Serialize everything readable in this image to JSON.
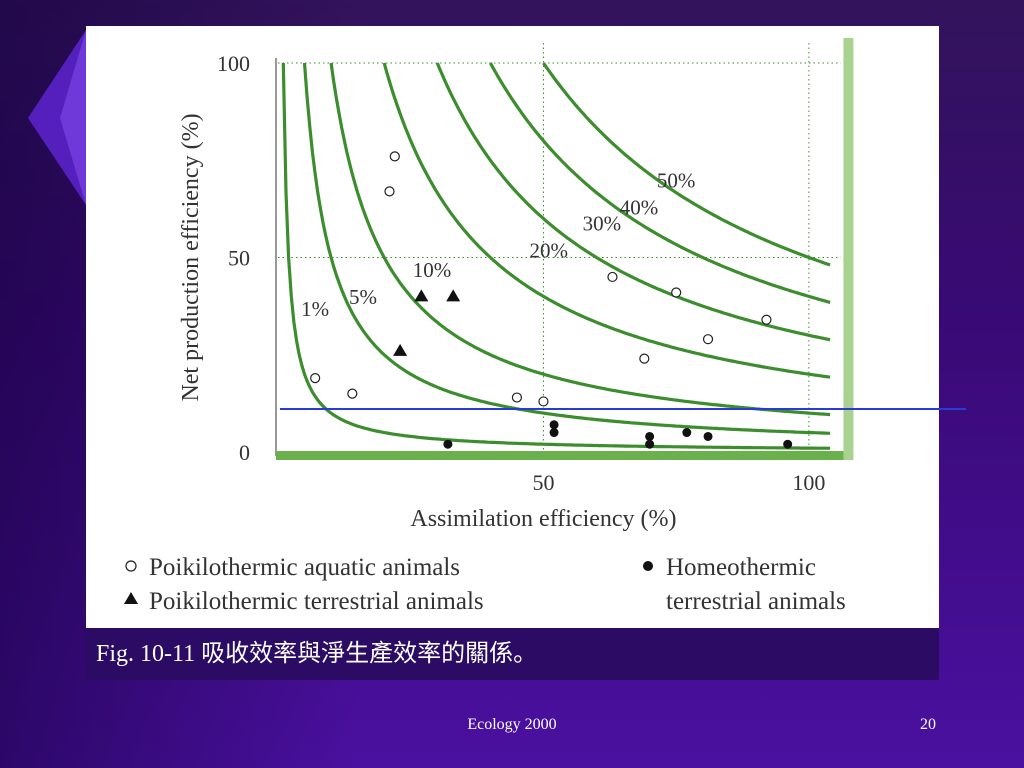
{
  "slide": {
    "caption": "Fig. 10-11 吸收效率與淨生產效率的關係。",
    "footer": "Ecology 2000",
    "page_number": "20"
  },
  "colors": {
    "curve": "#3c8d2e",
    "background_top": "#2a0a55",
    "background_bottom": "#4a10a0",
    "annotation_line": "#2a3ad6"
  },
  "chart_data": {
    "type": "scatter",
    "xlabel": "Assimilation efficiency (%)",
    "ylabel": "Net production efficiency (%)",
    "xlim": [
      0,
      110
    ],
    "ylim": [
      0,
      100
    ],
    "x_ticks": [
      50,
      100
    ],
    "y_ticks": [
      0,
      50,
      100
    ],
    "grid": "dotted at 50 and 100",
    "curves": [
      {
        "label": "1%",
        "k": 1
      },
      {
        "label": "5%",
        "k": 5
      },
      {
        "label": "10%",
        "k": 10
      },
      {
        "label": "20%",
        "k": 20
      },
      {
        "label": "30%",
        "k": 30
      },
      {
        "label": "40%",
        "k": 40
      },
      {
        "label": "50%",
        "k": 50
      }
    ],
    "series": [
      {
        "name": "Poikilothermic aquatic animals",
        "marker": "open-circle",
        "points": [
          [
            22,
            76
          ],
          [
            21,
            67
          ],
          [
            7,
            19
          ],
          [
            14,
            15
          ],
          [
            45,
            14
          ],
          [
            50,
            13
          ],
          [
            63,
            45
          ],
          [
            75,
            41
          ],
          [
            69,
            24
          ],
          [
            81,
            29
          ],
          [
            92,
            34
          ]
        ]
      },
      {
        "name": "Poikilothermic terrestrial animals",
        "marker": "filled-triangle",
        "points": [
          [
            27,
            40
          ],
          [
            33,
            40
          ],
          [
            23,
            26
          ]
        ]
      },
      {
        "name": "Homeothermic terrestrial animals",
        "marker": "filled-circle",
        "points": [
          [
            32,
            2
          ],
          [
            52,
            7
          ],
          [
            52,
            5
          ],
          [
            70,
            4
          ],
          [
            70,
            2
          ],
          [
            77,
            5
          ],
          [
            81,
            4
          ],
          [
            96,
            2
          ]
        ]
      }
    ],
    "legend": [
      {
        "marker": "○",
        "label": "Poikilothermic aquatic animals"
      },
      {
        "marker": "▲",
        "label": "Poikilothermic terrestrial animals"
      },
      {
        "marker": "●",
        "label_line1": "Homeothermic",
        "label_line2": "terrestrial animals"
      }
    ]
  }
}
